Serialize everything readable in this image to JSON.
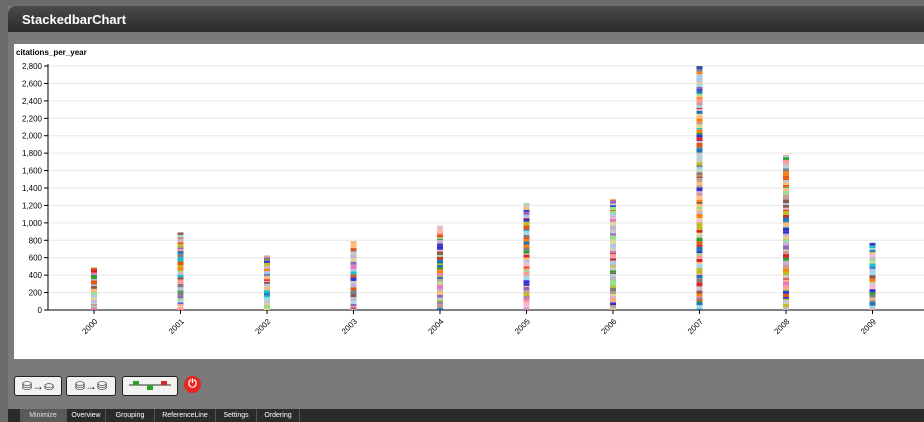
{
  "window": {
    "title": "StackedbarChart"
  },
  "toolbar": {
    "buttons": [
      {
        "name": "aggregate-button",
        "label": "⛁→⛀"
      },
      {
        "name": "disaggregate-button",
        "label": "⛁→⛁"
      },
      {
        "name": "reference-line-button",
        "label": ""
      }
    ],
    "power_label": "⏻"
  },
  "tabs": [
    "Minimize",
    "Overview",
    "Grouping",
    "ReferenceLine",
    "Settings",
    "Ordering"
  ],
  "active_tab": "Minimize",
  "colors": {
    "palette": [
      "#1f77b4",
      "#aec7e8",
      "#ff7f0e",
      "#ffbb78",
      "#2ca02c",
      "#98df8a",
      "#d62728",
      "#ff9896",
      "#9467bd",
      "#c5b0d5",
      "#8c564b",
      "#c49c94",
      "#e377c2",
      "#f7b6d2",
      "#7f7f7f",
      "#c7c7c7",
      "#bcbd22",
      "#dbdb8d",
      "#17becf",
      "#9edae5",
      "#3333cc",
      "#e6550d"
    ]
  },
  "chart_data": {
    "type": "bar",
    "stacked": true,
    "ylabel": "citations_per_year",
    "ylim": [
      0,
      2800
    ],
    "yticks": [
      0,
      200,
      400,
      600,
      800,
      1000,
      1200,
      1400,
      1600,
      1800,
      2000,
      2200,
      2400,
      2600,
      2800
    ],
    "ytick_labels": [
      "0",
      "200",
      "400",
      "600",
      "800",
      "1,000",
      "1,200",
      "1,400",
      "1,600",
      "1,800",
      "2,000",
      "2,200",
      "2,400",
      "2,600",
      "2,800"
    ],
    "categories": [
      "2000",
      "2001",
      "2002",
      "2003",
      "2004",
      "2005",
      "2006",
      "2007",
      "2008",
      "2009"
    ],
    "values": [
      490,
      890,
      630,
      790,
      970,
      1230,
      1270,
      2800,
      1780,
      770
    ],
    "grid": true,
    "legend": "none"
  }
}
